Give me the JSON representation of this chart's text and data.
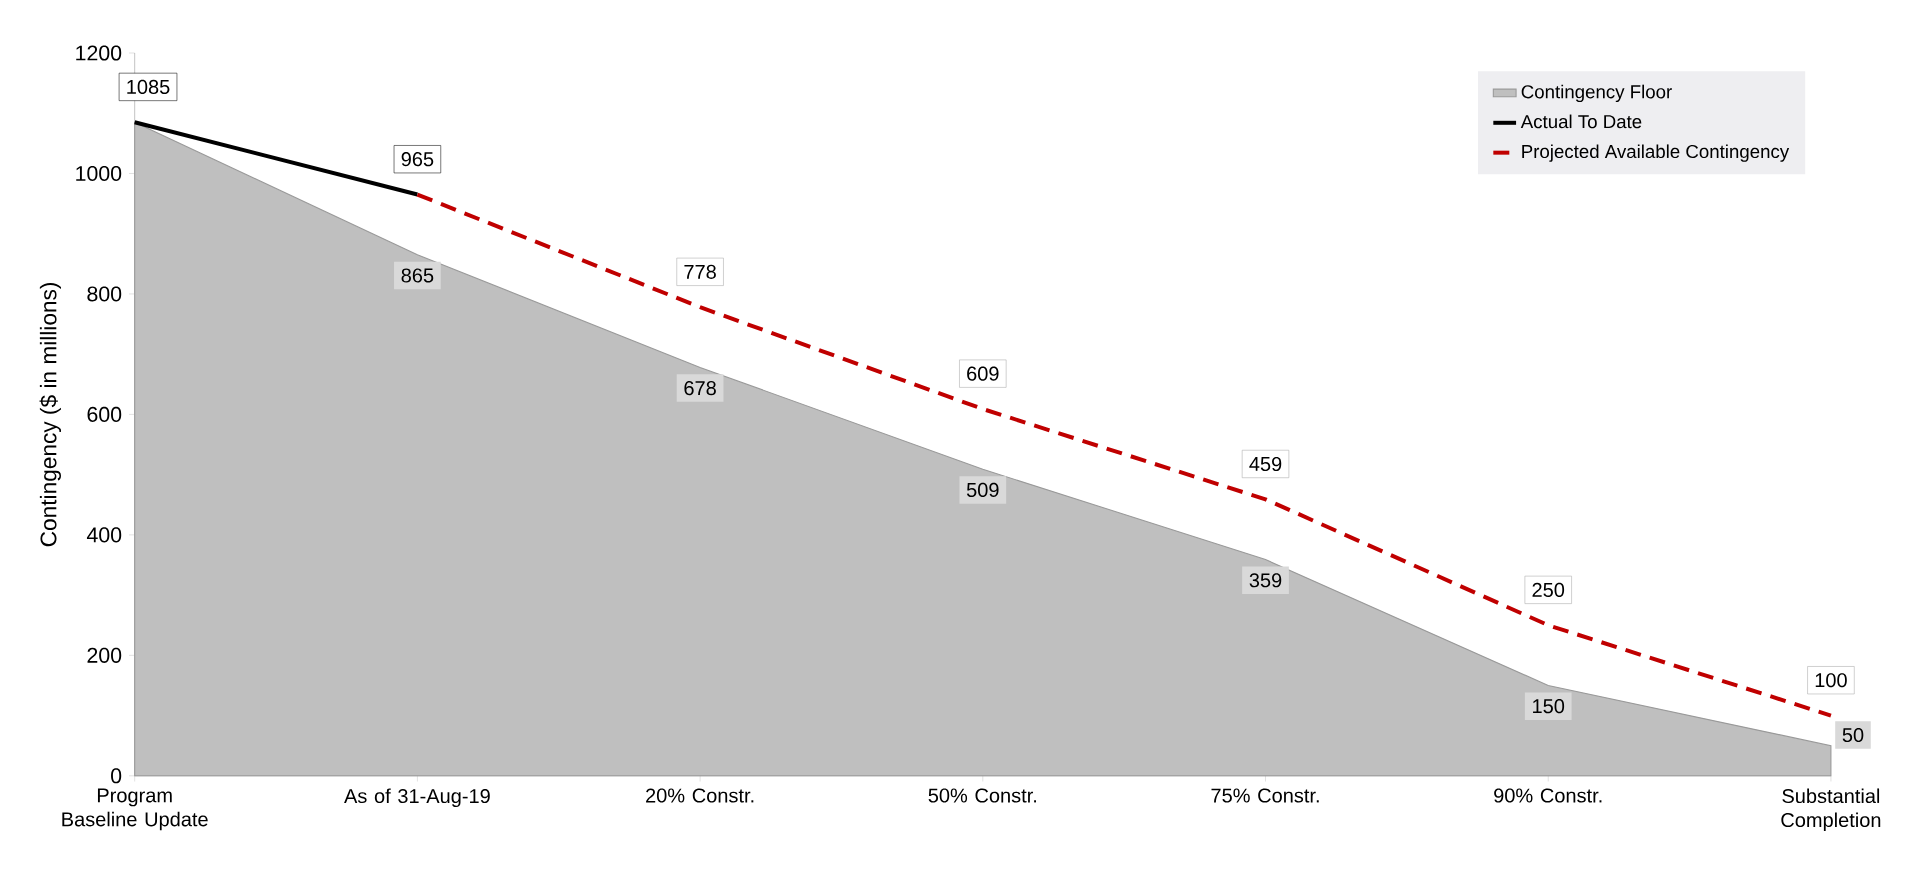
{
  "chart_data": {
    "type": "line",
    "ylabel": "Contingency ($ in millions)",
    "categories": [
      "Program Baseline Update",
      "As of 31-Aug-19",
      "20% Constr.",
      "50% Constr.",
      "75% Constr.",
      "90% Constr.",
      "Substantial Completion"
    ],
    "ylim": [
      0,
      1200
    ],
    "yticks": [
      0,
      200,
      400,
      600,
      800,
      1000,
      1200
    ],
    "legend": "top right",
    "series": [
      {
        "name": "Contingency Floor",
        "type": "area",
        "color": "#bfbfbf",
        "values": [
          1085,
          865,
          678,
          509,
          359,
          150,
          50
        ],
        "value_labels": [
          null,
          "865",
          "678",
          "509",
          "359",
          "150",
          "50"
        ]
      },
      {
        "name": "Actual To Date",
        "line_style": "solid",
        "color": "#000000",
        "values": [
          1085,
          965,
          null,
          null,
          null,
          null,
          null
        ],
        "value_labels": [
          "1085",
          "965",
          null,
          null,
          null,
          null,
          null
        ]
      },
      {
        "name": "Projected Available Contingency",
        "line_style": "dashed",
        "color": "#c00000",
        "values": [
          null,
          965,
          778,
          609,
          459,
          250,
          100
        ],
        "value_labels": [
          null,
          null,
          "778",
          "609",
          "459",
          "250",
          "100"
        ]
      }
    ]
  }
}
